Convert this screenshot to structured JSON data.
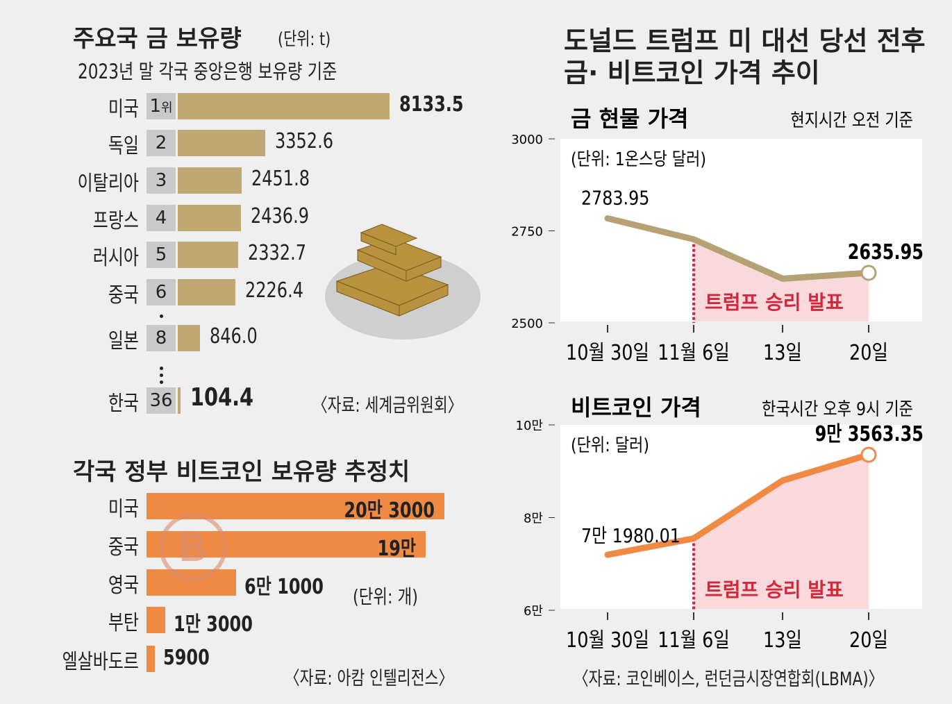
{
  "gold_holdings": {
    "title": "주요국 금 보유량",
    "unit": "(단위: t)",
    "subtitle": "2023년 말 각국 중앙은행 보유량 기준",
    "rank_suffix": "위",
    "source": "〈자료: 세계금위원회〉",
    "rows": [
      {
        "country": "미국",
        "rank": "1",
        "value": 8133.5
      },
      {
        "country": "독일",
        "rank": "2",
        "value": 3352.6
      },
      {
        "country": "이탈리아",
        "rank": "3",
        "value": 2451.8
      },
      {
        "country": "프랑스",
        "rank": "4",
        "value": 2436.9
      },
      {
        "country": "러시아",
        "rank": "5",
        "value": 2332.7
      },
      {
        "country": "중국",
        "rank": "6",
        "value": 2226.4
      },
      {
        "country": "일본",
        "rank": "8",
        "value": 846.0
      },
      {
        "country": "한국",
        "rank": "36",
        "value": 104.4
      }
    ],
    "value_labels": [
      "8133.5",
      "3352.6",
      "2451.8",
      "2436.9",
      "2332.7",
      "2226.4",
      "846.0",
      "104.4"
    ]
  },
  "bitcoin_holdings": {
    "title": "각국 정부 비트코인 보유량 추정치",
    "unit": "(단위: 개)",
    "source": "〈자료: 아캄 인텔리전스〉",
    "rows": [
      {
        "country": "미국",
        "value": 203000,
        "label": "20만 3000"
      },
      {
        "country": "중국",
        "value": 190000,
        "label": "19만"
      },
      {
        "country": "영국",
        "value": 61000,
        "label": "6만 1000"
      },
      {
        "country": "부탄",
        "value": 13000,
        "label": "1만 3000"
      },
      {
        "country": "엘살바도르",
        "value": 5900,
        "label": "5900"
      }
    ]
  },
  "right_title": [
    "도널드 트럼프 미 대선 당선 전후",
    "금· 비트코인 가격 추이"
  ],
  "right_source": "〈자료: 코인베이스, 런던금시장연합회(LBMA)〉",
  "chart_data": [
    {
      "type": "line",
      "title": "금 현물 가격",
      "note": "현지시간 오전 기준",
      "unit": "(단위: 1온스당 달러)",
      "x": [
        "10월 30일",
        "11월 6일",
        "13일",
        "20일"
      ],
      "values": [
        2783.95,
        2727,
        2620,
        2635.95
      ],
      "point_labels": [
        "2783.95",
        "",
        "",
        "2635.95"
      ],
      "ylim": [
        2500,
        3000
      ],
      "yticks": [
        {
          "v": 2500,
          "label": "2500"
        },
        {
          "v": 2750,
          "label": "2750"
        },
        {
          "v": 3000,
          "label": "3000"
        }
      ],
      "annotation": "트럼프 승리 발표",
      "color": "#b5a174"
    },
    {
      "type": "line",
      "title": "비트코인 가격",
      "note": "한국시간 오후 9시 기준",
      "unit": "(단위: 달러)",
      "x": [
        "10월 30일",
        "11월 6일",
        "13일",
        "20일"
      ],
      "values": [
        71980.01,
        75500,
        88000,
        93563.35
      ],
      "point_labels": [
        "7만 1980.01",
        "",
        "",
        "9만 3563.35"
      ],
      "ylim": [
        60000,
        100000
      ],
      "yticks": [
        {
          "v": 60000,
          "label": "6만"
        },
        {
          "v": 80000,
          "label": "8만"
        },
        {
          "v": 100000,
          "label": "10만"
        }
      ],
      "annotation": "트럼프 승리 발표",
      "color": "#ef8a45"
    }
  ],
  "colors": {
    "gold": "#bfa872",
    "orange": "#ef8a45",
    "highlight": "#f9d9dc",
    "annotation": "#d0283a",
    "background": "#efefef"
  }
}
